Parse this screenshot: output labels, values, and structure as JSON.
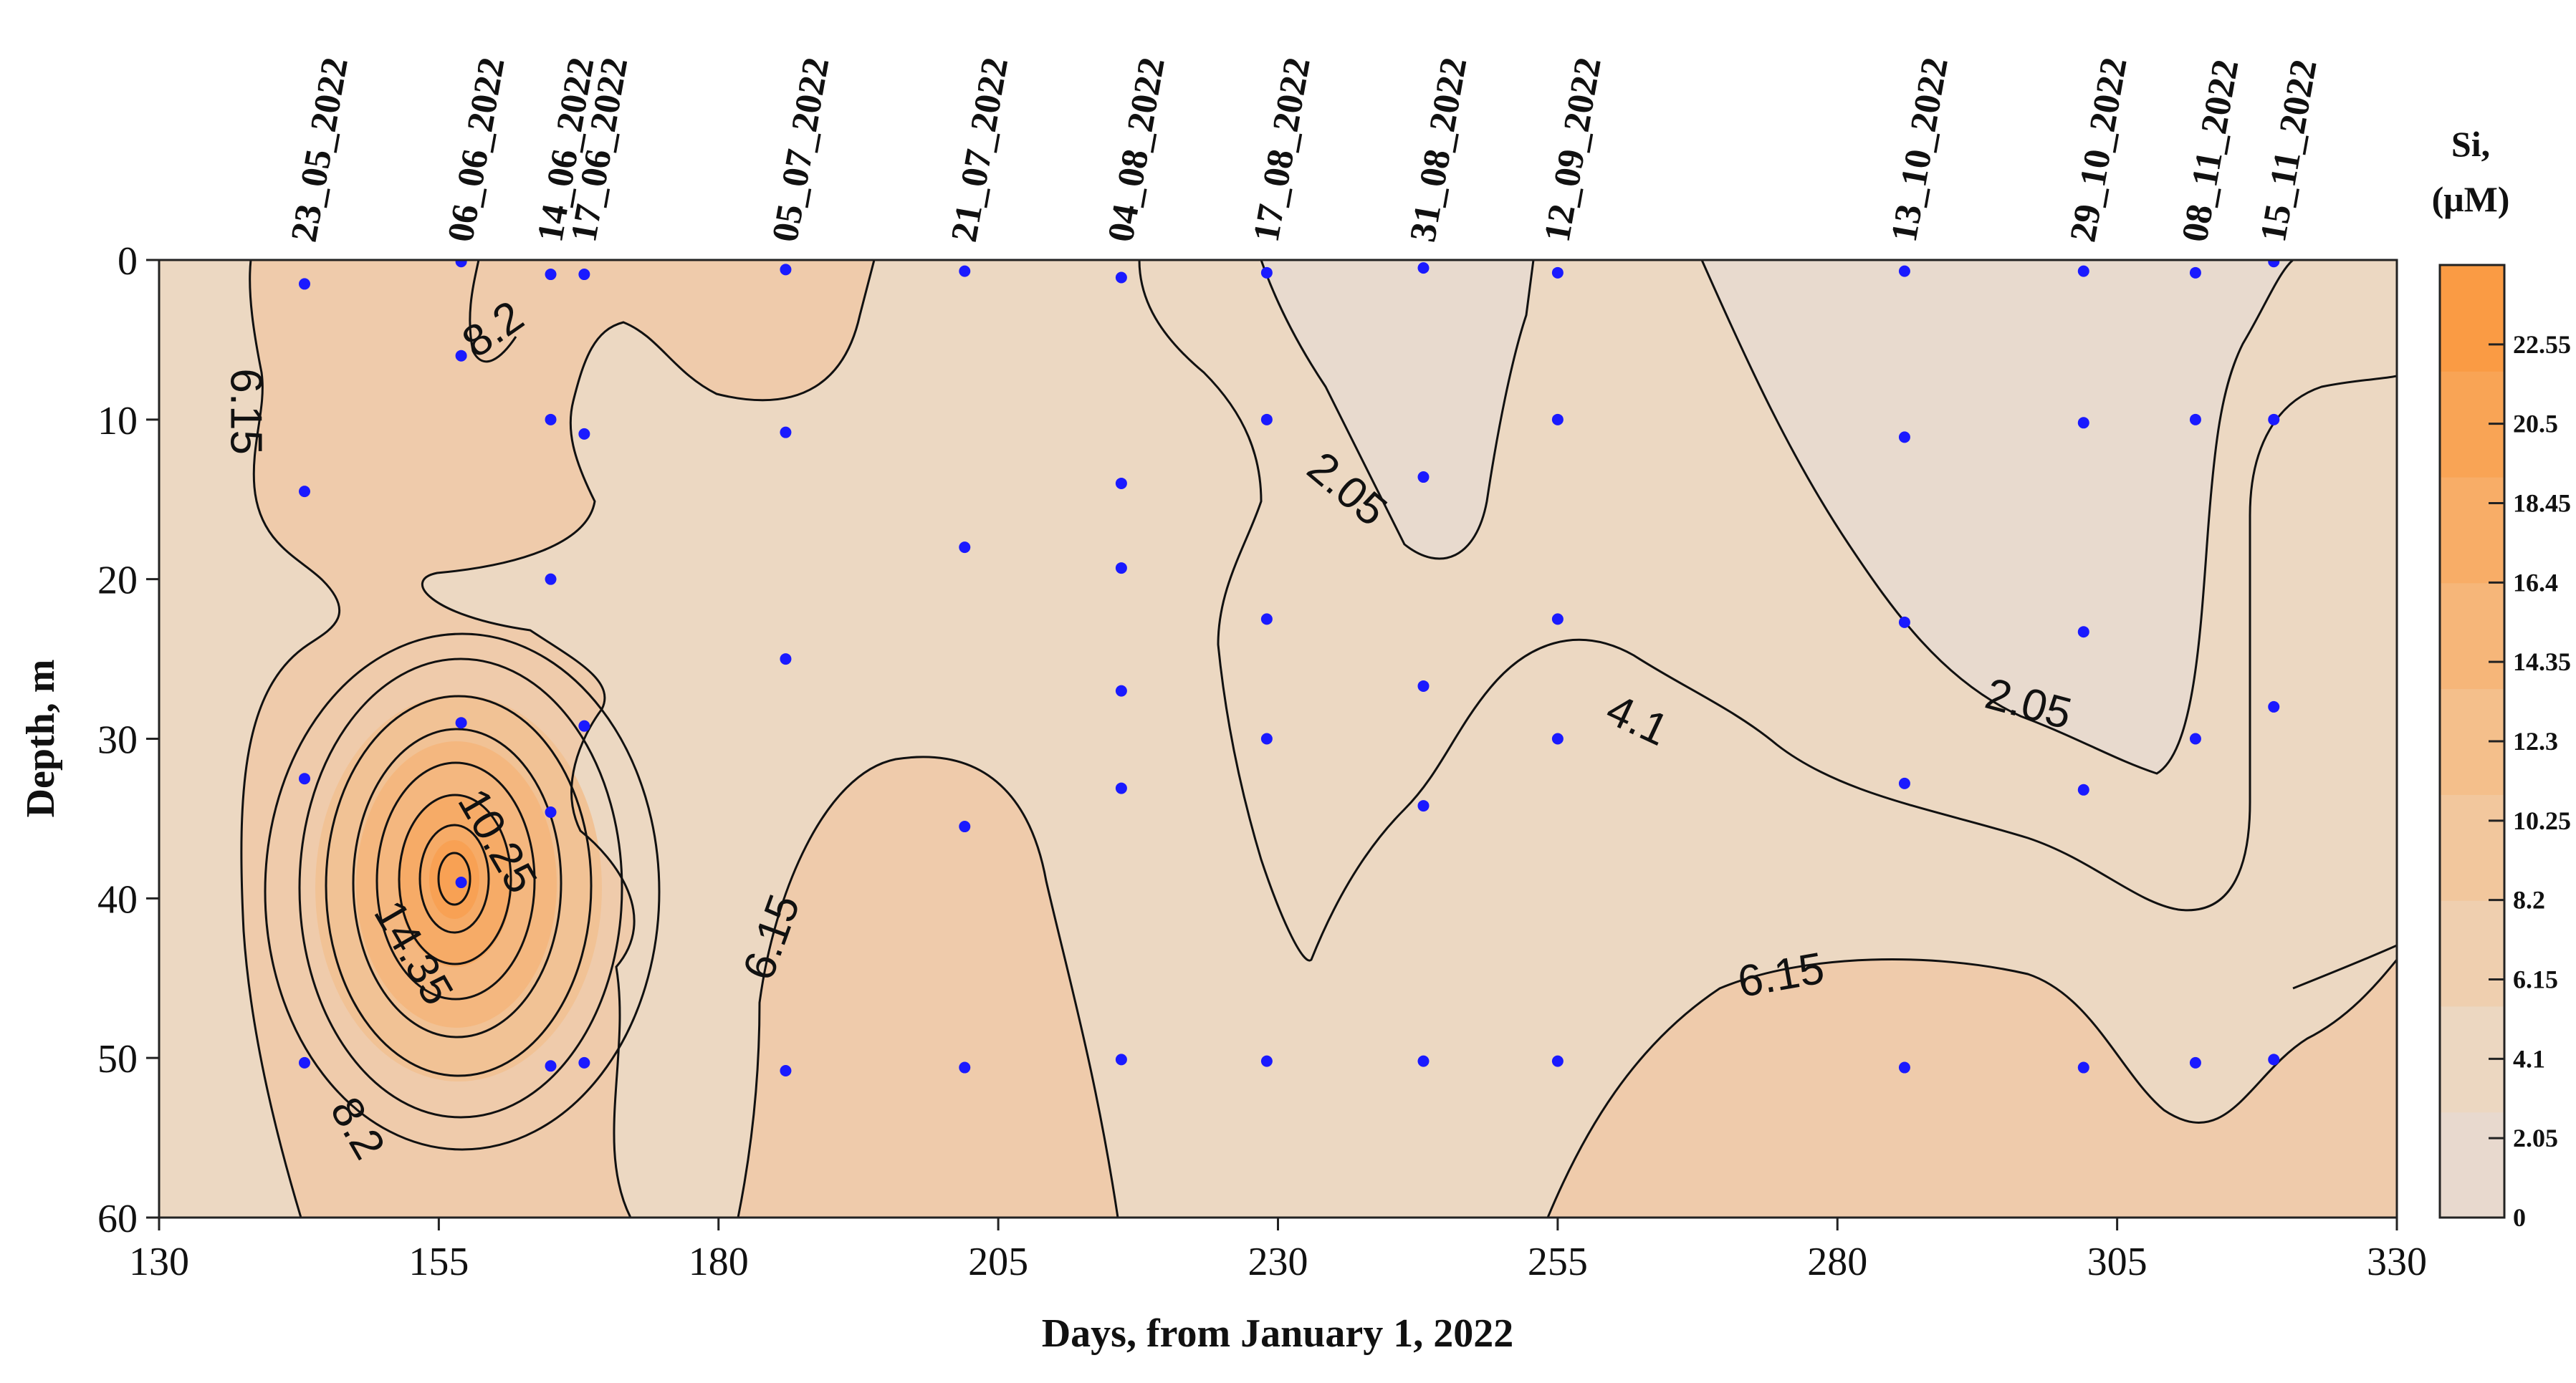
{
  "chart_data": {
    "type": "heatmap",
    "title": "",
    "xlabel": "Days, from January 1, 2022",
    "ylabel": "Depth, m",
    "xlim": [
      130,
      330
    ],
    "ylim": [
      60,
      0
    ],
    "x_ticks": [
      130,
      155,
      180,
      205,
      230,
      255,
      280,
      305,
      330
    ],
    "y_ticks": [
      0,
      10,
      20,
      30,
      40,
      50,
      60
    ],
    "colorbar": {
      "title_line1": "Si,",
      "title_line2": "(μM)",
      "min": 0,
      "max": 24.6,
      "ticks": [
        "0",
        "2.05",
        "4.1",
        "6.15",
        "8.2",
        "10.25",
        "12.3",
        "14.35",
        "16.4",
        "18.45",
        "20.5",
        "22.55"
      ],
      "colors": [
        "#e8d9ce",
        "#ecd7c1",
        "#efcfaf",
        "#f2c79d",
        "#f4bf8b",
        "#f6b679",
        "#f8ad67",
        "#f9a455",
        "#fa9b44"
      ]
    },
    "stations": [
      {
        "date": "23_05_2022",
        "day": 143
      },
      {
        "date": "06_06_2022",
        "day": 157
      },
      {
        "date": "14_06_2022",
        "day": 165
      },
      {
        "date": "17_06_2022",
        "day": 168
      },
      {
        "date": "05_07_2022",
        "day": 186
      },
      {
        "date": "21_07_2022",
        "day": 202
      },
      {
        "date": "04_08_2022",
        "day": 216
      },
      {
        "date": "17_08_2022",
        "day": 229
      },
      {
        "date": "31_08_2022",
        "day": 243
      },
      {
        "date": "12_09_2022",
        "day": 255
      },
      {
        "date": "13_10_2022",
        "day": 286
      },
      {
        "date": "29_10_2022",
        "day": 302
      },
      {
        "date": "08_11_2022",
        "day": 312
      },
      {
        "date": "15_11_2022",
        "day": 319
      }
    ],
    "sample_points": [
      {
        "x": 143,
        "y": 1.5
      },
      {
        "x": 143,
        "y": 14.5
      },
      {
        "x": 143,
        "y": 32.5
      },
      {
        "x": 143,
        "y": 50.3
      },
      {
        "x": 157,
        "y": 0.1
      },
      {
        "x": 157,
        "y": 6
      },
      {
        "x": 157,
        "y": 29
      },
      {
        "x": 157,
        "y": 39
      },
      {
        "x": 165,
        "y": 50.5
      },
      {
        "x": 165,
        "y": 0.9
      },
      {
        "x": 165,
        "y": 10
      },
      {
        "x": 165,
        "y": 20
      },
      {
        "x": 165,
        "y": 34.6
      },
      {
        "x": 168,
        "y": 0.9
      },
      {
        "x": 168,
        "y": 10.9
      },
      {
        "x": 168,
        "y": 29.2
      },
      {
        "x": 168,
        "y": 50.3
      },
      {
        "x": 186,
        "y": 0.6
      },
      {
        "x": 186,
        "y": 10.8
      },
      {
        "x": 186,
        "y": 25
      },
      {
        "x": 186,
        "y": 50.8
      },
      {
        "x": 202,
        "y": 0.7
      },
      {
        "x": 202,
        "y": 18
      },
      {
        "x": 202,
        "y": 35.5
      },
      {
        "x": 202,
        "y": 50.6
      },
      {
        "x": 216,
        "y": 1.1
      },
      {
        "x": 216,
        "y": 14
      },
      {
        "x": 216,
        "y": 19.3
      },
      {
        "x": 216,
        "y": 27
      },
      {
        "x": 216,
        "y": 33.1
      },
      {
        "x": 216,
        "y": 50.1
      },
      {
        "x": 229,
        "y": 0.8
      },
      {
        "x": 229,
        "y": 10
      },
      {
        "x": 229,
        "y": 22.5
      },
      {
        "x": 229,
        "y": 30
      },
      {
        "x": 229,
        "y": 50.2
      },
      {
        "x": 243,
        "y": 0.5
      },
      {
        "x": 243,
        "y": 13.6
      },
      {
        "x": 243,
        "y": 26.7
      },
      {
        "x": 243,
        "y": 34.2
      },
      {
        "x": 243,
        "y": 50.2
      },
      {
        "x": 255,
        "y": 0.8
      },
      {
        "x": 255,
        "y": 10
      },
      {
        "x": 255,
        "y": 22.5
      },
      {
        "x": 255,
        "y": 30
      },
      {
        "x": 255,
        "y": 50.2
      },
      {
        "x": 286,
        "y": 0.7
      },
      {
        "x": 286,
        "y": 11.1
      },
      {
        "x": 286,
        "y": 22.7
      },
      {
        "x": 286,
        "y": 32.8
      },
      {
        "x": 286,
        "y": 50.6
      },
      {
        "x": 302,
        "y": 0.7
      },
      {
        "x": 302,
        "y": 10.2
      },
      {
        "x": 302,
        "y": 23.3
      },
      {
        "x": 302,
        "y": 33.2
      },
      {
        "x": 302,
        "y": 50.6
      },
      {
        "x": 312,
        "y": 0.8
      },
      {
        "x": 312,
        "y": 10
      },
      {
        "x": 312,
        "y": 30
      },
      {
        "x": 312,
        "y": 50.3
      },
      {
        "x": 319,
        "y": 0.1
      },
      {
        "x": 319,
        "y": 10
      },
      {
        "x": 319,
        "y": 28
      },
      {
        "x": 319,
        "y": 50.1
      }
    ],
    "contour_labels": [
      {
        "text": "6.15",
        "x": 137.5,
        "y": 9.5,
        "angle": 90
      },
      {
        "text": "8.2",
        "x": 160,
        "y": 4.5,
        "angle": -35
      },
      {
        "text": "2.05",
        "x": 236,
        "y": 14.5,
        "angle": 40
      },
      {
        "text": "4.1",
        "x": 262,
        "y": 29,
        "angle": 25
      },
      {
        "text": "2.05",
        "x": 297,
        "y": 28,
        "angle": 15
      },
      {
        "text": "10.25",
        "x": 160,
        "y": 36.5,
        "angle": 60
      },
      {
        "text": "14.35",
        "x": 152.5,
        "y": 43.5,
        "angle": 60
      },
      {
        "text": "8.2",
        "x": 147.5,
        "y": 54.5,
        "angle": 60
      },
      {
        "text": "6.15",
        "x": 185,
        "y": 42.5,
        "angle": -70
      },
      {
        "text": "6.15",
        "x": 275,
        "y": 45,
        "angle": -10
      }
    ]
  }
}
